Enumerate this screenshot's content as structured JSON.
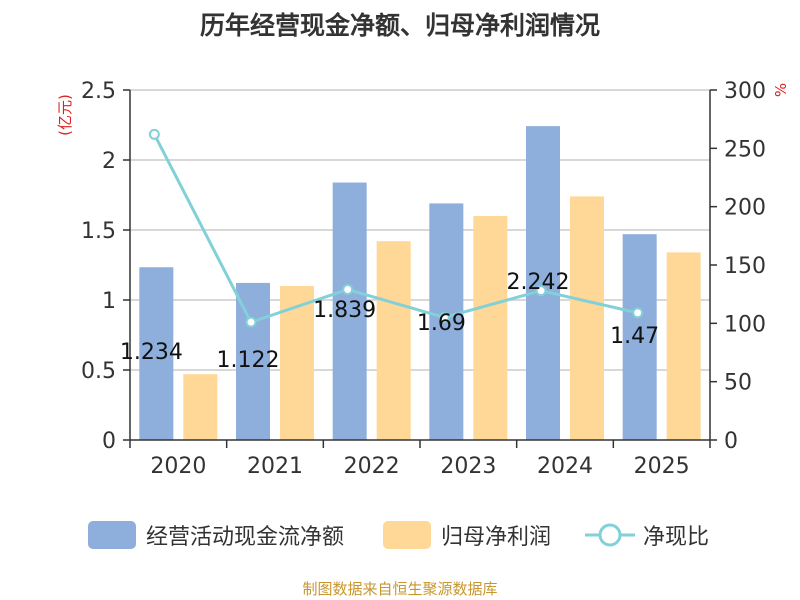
{
  "title": "历年经营现金净额、归母净利润情况",
  "source": "制图数据来自恒生聚源数据库",
  "chart_data": {
    "type": "bar",
    "categories": [
      "2020",
      "2021",
      "2022",
      "2023",
      "2024",
      "2025"
    ],
    "series": [
      {
        "name": "经营活动现金流净额",
        "type": "bar",
        "axis": "left",
        "values": [
          1.234,
          1.122,
          1.839,
          1.69,
          2.242,
          1.47
        ],
        "color": "#8eaedb"
      },
      {
        "name": "归母净利润",
        "type": "bar",
        "axis": "left",
        "values": [
          0.47,
          1.1,
          1.42,
          1.6,
          1.74,
          1.34
        ],
        "color": "#ffd797"
      },
      {
        "name": "净现比",
        "type": "line",
        "axis": "right",
        "values": [
          262,
          101,
          129,
          105,
          128,
          109
        ],
        "color": "#82d0d8"
      }
    ],
    "data_labels": [
      "1.234",
      "1.122",
      "1.839",
      "1.69",
      "2.242",
      "1.47"
    ],
    "y_left": {
      "label": "(亿元)",
      "min": 0,
      "max": 2.5,
      "ticks": [
        0,
        0.5,
        1,
        1.5,
        2,
        2.5
      ],
      "tick_labels": [
        "0",
        "0.5",
        "1",
        "1.5",
        "2",
        "2.5"
      ]
    },
    "y_right": {
      "label": "%",
      "min": 0,
      "max": 300,
      "ticks": [
        0,
        50,
        100,
        150,
        200,
        250,
        300
      ],
      "tick_labels": [
        "0",
        "50",
        "100",
        "150",
        "200",
        "250",
        "300"
      ]
    },
    "grid": true,
    "legend_position": "bottom",
    "axis_label_color": "#e02020"
  }
}
